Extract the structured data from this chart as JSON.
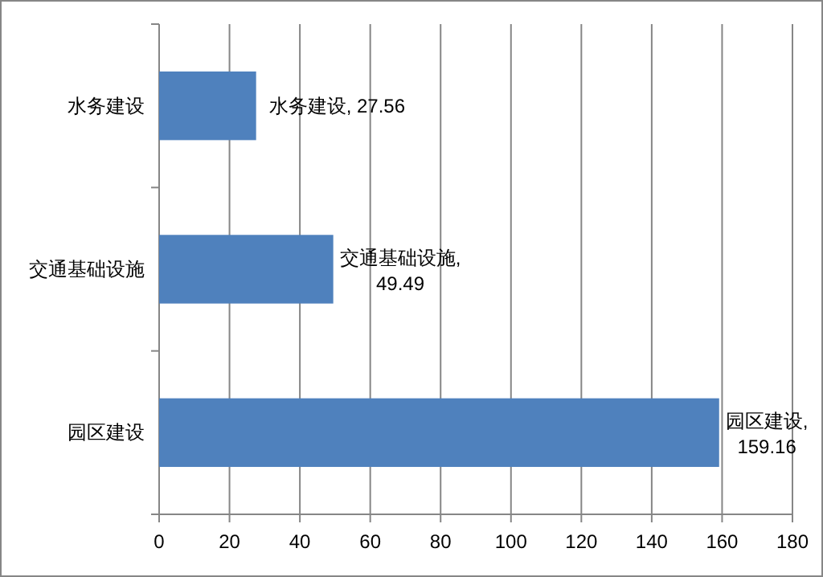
{
  "chart_data": {
    "type": "bar",
    "orientation": "horizontal",
    "categories": [
      "水务建设",
      "交通基础设施",
      "园区建设"
    ],
    "values": [
      27.56,
      49.49,
      159.16
    ],
    "value_labels": [
      "水务建设, 27.56",
      "交通基础设施, 49.49",
      "园区建设, 159.16"
    ],
    "color": "#4f81bd",
    "xlim": [
      0,
      180
    ],
    "xticks": [
      0,
      20,
      40,
      60,
      80,
      100,
      120,
      140,
      160,
      180
    ],
    "grid": "x"
  }
}
